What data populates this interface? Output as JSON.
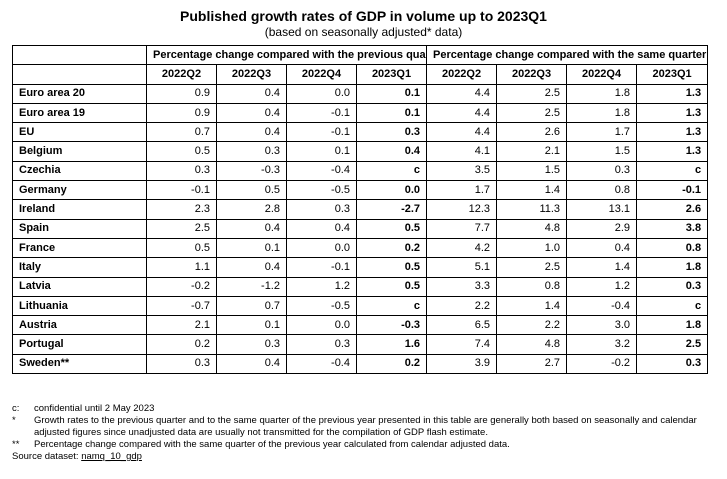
{
  "title": "Published growth rates of GDP in volume up to 2023Q1",
  "subtitle": "(based on seasonally adjusted* data)",
  "table": {
    "group_headers": [
      "Percentage change compared with the previous quarter",
      "Percentage change compared with the same quarter of the previous year"
    ],
    "quarters": [
      "2022Q2",
      "2022Q3",
      "2022Q4",
      "2023Q1",
      "2022Q2",
      "2022Q3",
      "2022Q4",
      "2023Q1"
    ],
    "rows": [
      {
        "country": "Euro area 20",
        "values": [
          "0.9",
          "0.4",
          "0.0",
          "0.1",
          "4.4",
          "2.5",
          "1.8",
          "1.3"
        ]
      },
      {
        "country": "Euro area 19",
        "values": [
          "0.9",
          "0.4",
          "-0.1",
          "0.1",
          "4.4",
          "2.5",
          "1.8",
          "1.3"
        ]
      },
      {
        "country": "EU",
        "values": [
          "0.7",
          "0.4",
          "-0.1",
          "0.3",
          "4.4",
          "2.6",
          "1.7",
          "1.3"
        ]
      },
      {
        "country": "Belgium",
        "values": [
          "0.5",
          "0.3",
          "0.1",
          "0.4",
          "4.1",
          "2.1",
          "1.5",
          "1.3"
        ]
      },
      {
        "country": "Czechia",
        "values": [
          "0.3",
          "-0.3",
          "-0.4",
          "c",
          "3.5",
          "1.5",
          "0.3",
          "c"
        ]
      },
      {
        "country": "Germany",
        "values": [
          "-0.1",
          "0.5",
          "-0.5",
          "0.0",
          "1.7",
          "1.4",
          "0.8",
          "-0.1"
        ]
      },
      {
        "country": "Ireland",
        "values": [
          "2.3",
          "2.8",
          "0.3",
          "-2.7",
          "12.3",
          "11.3",
          "13.1",
          "2.6"
        ]
      },
      {
        "country": "Spain",
        "values": [
          "2.5",
          "0.4",
          "0.4",
          "0.5",
          "7.7",
          "4.8",
          "2.9",
          "3.8"
        ]
      },
      {
        "country": "France",
        "values": [
          "0.5",
          "0.1",
          "0.0",
          "0.2",
          "4.2",
          "1.0",
          "0.4",
          "0.8"
        ]
      },
      {
        "country": "Italy",
        "values": [
          "1.1",
          "0.4",
          "-0.1",
          "0.5",
          "5.1",
          "2.5",
          "1.4",
          "1.8"
        ]
      },
      {
        "country": "Latvia",
        "values": [
          "-0.2",
          "-1.2",
          "1.2",
          "0.5",
          "3.3",
          "0.8",
          "1.2",
          "0.3"
        ]
      },
      {
        "country": "Lithuania",
        "values": [
          "-0.7",
          "0.7",
          "-0.5",
          "c",
          "2.2",
          "1.4",
          "-0.4",
          "c"
        ]
      },
      {
        "country": "Austria",
        "values": [
          "2.1",
          "0.1",
          "0.0",
          "-0.3",
          "6.5",
          "2.2",
          "3.0",
          "1.8"
        ]
      },
      {
        "country": "Portugal",
        "values": [
          "0.2",
          "0.3",
          "0.3",
          "1.6",
          "7.4",
          "4.8",
          "3.2",
          "2.5"
        ]
      },
      {
        "country": "Sweden**",
        "values": [
          "0.3",
          "0.4",
          "-0.4",
          "0.2",
          "3.9",
          "2.7",
          "-0.2",
          "0.3"
        ]
      }
    ]
  },
  "notes": [
    {
      "mark": "c:",
      "text": "confidential until 2 May 2023"
    },
    {
      "mark": "*",
      "text": "Growth rates to the previous quarter and to the same quarter of the previous year presented in this table are generally both based on seasonally and calendar adjusted figures since unadjusted data are usually not transmitted for the compilation of GDP flash estimate."
    },
    {
      "mark": "**",
      "text": "Percentage change compared with the same quarter of the previous year calculated from calendar adjusted data."
    }
  ],
  "source": {
    "label": "Source dataset:",
    "link_text": "namq_10_gdp"
  }
}
